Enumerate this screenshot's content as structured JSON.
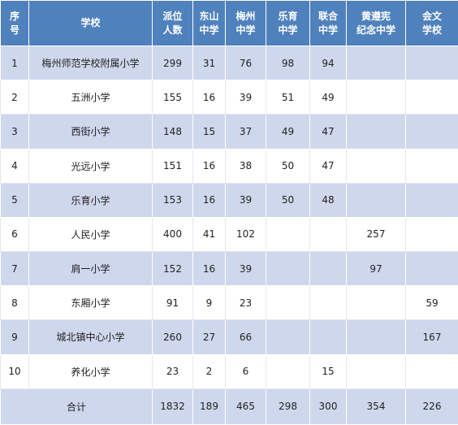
{
  "table": {
    "headers": [
      [
        "序",
        "号"
      ],
      [
        "学校"
      ],
      [
        "派位",
        "人数"
      ],
      [
        "东山",
        "中学"
      ],
      [
        "梅州",
        "中学"
      ],
      [
        "乐育",
        "中学"
      ],
      [
        "联合",
        "中学"
      ],
      [
        "黄遵宪",
        "纪念中学"
      ],
      [
        "会文",
        "学校"
      ]
    ],
    "rows": [
      [
        "1",
        "梅州师范学校附属小学",
        "299",
        "31",
        "76",
        "98",
        "94",
        "",
        ""
      ],
      [
        "2",
        "五洲小学",
        "155",
        "16",
        "39",
        "51",
        "49",
        "",
        ""
      ],
      [
        "3",
        "西街小学",
        "148",
        "15",
        "37",
        "49",
        "47",
        "",
        ""
      ],
      [
        "4",
        "光远小学",
        "151",
        "16",
        "38",
        "50",
        "47",
        "",
        ""
      ],
      [
        "5",
        "乐育小学",
        "153",
        "16",
        "39",
        "50",
        "48",
        "",
        ""
      ],
      [
        "6",
        "人民小学",
        "400",
        "41",
        "102",
        "",
        "",
        "257",
        ""
      ],
      [
        "7",
        "肩一小学",
        "152",
        "16",
        "39",
        "",
        "",
        "97",
        ""
      ],
      [
        "8",
        "东厢小学",
        "91",
        "9",
        "23",
        "",
        "",
        "",
        "59"
      ],
      [
        "9",
        "城北镇中心小学",
        "260",
        "27",
        "66",
        "",
        "",
        "",
        "167"
      ],
      [
        "10",
        "养化小学",
        "23",
        "2",
        "6",
        "",
        "15",
        "",
        ""
      ]
    ],
    "total": [
      "合计",
      "1832",
      "189",
      "465",
      "298",
      "300",
      "354",
      "226"
    ]
  },
  "colors": {
    "header_bg": "#4f81bd",
    "header_text": "#ffffff",
    "band_bg": "#cfd7ec",
    "row_bg": "#ffffff"
  }
}
